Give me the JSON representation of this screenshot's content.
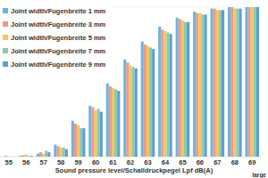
{
  "chart_data": {
    "type": "bar",
    "x_label": "Sound pressure level/Schalldruckpegel Lpf dB(A)",
    "annotations": [
      "large"
    ],
    "categories": [
      "55",
      "56",
      "57",
      "58",
      "59",
      "60",
      "61",
      "62",
      "63",
      "64",
      "65",
      "66",
      "67",
      "68",
      "69"
    ],
    "series": [
      {
        "name": "Joint width/Fugenbreite 1 mm",
        "color": "#6cb4e4",
        "values": [
          0,
          0.5,
          2,
          8,
          24,
          34,
          49,
          65,
          77,
          87,
          93,
          97,
          99,
          100,
          100
        ]
      },
      {
        "name": "Joint width/Fugenbreite 3 mm",
        "color": "#ef9a86",
        "values": [
          0.5,
          1,
          3,
          7,
          22,
          33,
          47,
          63,
          75,
          85,
          92,
          96,
          99,
          100,
          100
        ]
      },
      {
        "name": "Joint width/Fugenbreite 5 mm",
        "color": "#f2c75c",
        "values": [
          0,
          1.5,
          2,
          6,
          21,
          31,
          46,
          61,
          74,
          84,
          91,
          96,
          98,
          99,
          100
        ]
      },
      {
        "name": "Joint width/Fugenbreite 7 mm",
        "color": "#8fc9b0",
        "values": [
          0,
          0.5,
          4,
          6,
          19,
          32,
          45,
          60,
          73,
          83,
          90,
          95,
          98,
          99,
          100
        ]
      },
      {
        "name": "Joint width/Fugenbreite 9 mm",
        "color": "#5a9fd4",
        "values": [
          0,
          0.5,
          3,
          5,
          19,
          30,
          44,
          59,
          72,
          82,
          90,
          95,
          98,
          99,
          100
        ]
      }
    ],
    "ylim": [
      0,
      100
    ],
    "grid": false,
    "legend": "upper-left",
    "tick_labels": "x"
  }
}
